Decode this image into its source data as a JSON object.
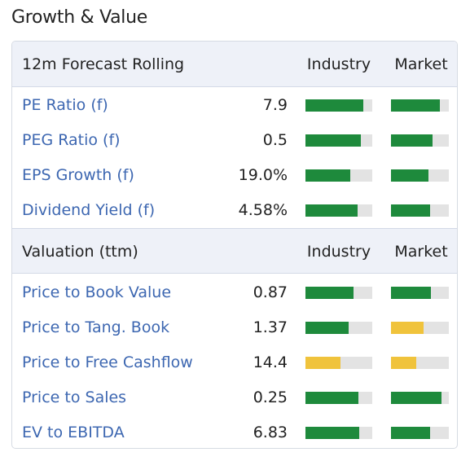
{
  "title": "Growth & Value",
  "colors": {
    "green": "#1e8a3c",
    "yellow": "#f0c33c",
    "track": "#e3e3e3",
    "link": "#3d67b1"
  },
  "sections": [
    {
      "heading": "12m Forecast Rolling",
      "industry_label": "Industry",
      "market_label": "Market",
      "rows": [
        {
          "label": "PE Ratio (f)",
          "value": "7.9",
          "industry": {
            "level": 0.87,
            "color": "green"
          },
          "market": {
            "level": 0.84,
            "color": "green"
          }
        },
        {
          "label": "PEG Ratio (f)",
          "value": "0.5",
          "industry": {
            "level": 0.83,
            "color": "green"
          },
          "market": {
            "level": 0.72,
            "color": "green"
          }
        },
        {
          "label": "EPS Growth (f)",
          "value": "19.0%",
          "industry": {
            "level": 0.67,
            "color": "green"
          },
          "market": {
            "level": 0.65,
            "color": "green"
          }
        },
        {
          "label": "Dividend Yield (f)",
          "value": "4.58%",
          "industry": {
            "level": 0.78,
            "color": "green"
          },
          "market": {
            "level": 0.68,
            "color": "green"
          }
        }
      ]
    },
    {
      "heading": "Valuation (ttm)",
      "industry_label": "Industry",
      "market_label": "Market",
      "rows": [
        {
          "label": "Price to Book Value",
          "value": "0.87",
          "industry": {
            "level": 0.72,
            "color": "green"
          },
          "market": {
            "level": 0.69,
            "color": "green"
          }
        },
        {
          "label": "Price to Tang. Book",
          "value": "1.37",
          "industry": {
            "level": 0.65,
            "color": "green"
          },
          "market": {
            "level": 0.56,
            "color": "yellow"
          }
        },
        {
          "label": "Price to Free Cashflow",
          "value": "14.4",
          "industry": {
            "level": 0.52,
            "color": "yellow"
          },
          "market": {
            "level": 0.44,
            "color": "yellow"
          }
        },
        {
          "label": "Price to Sales",
          "value": "0.25",
          "industry": {
            "level": 0.79,
            "color": "green"
          },
          "market": {
            "level": 0.87,
            "color": "green"
          }
        },
        {
          "label": "EV to EBITDA",
          "value": "6.83",
          "industry": {
            "level": 0.8,
            "color": "green"
          },
          "market": {
            "level": 0.68,
            "color": "green"
          }
        }
      ]
    }
  ]
}
